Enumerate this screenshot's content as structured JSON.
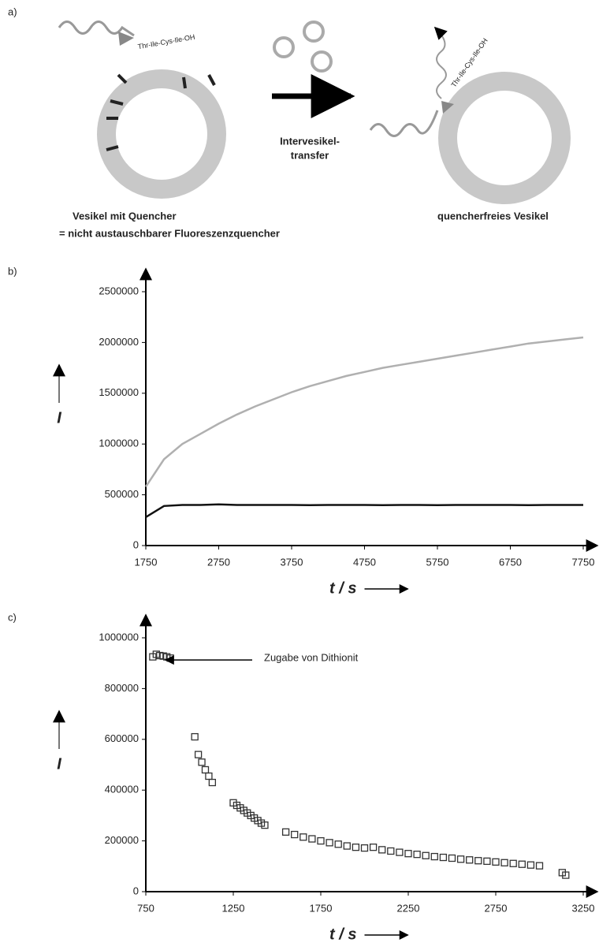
{
  "diagram": {
    "panel": "a)",
    "peptide_left": "Thr-Ile-Cys-Ile-OH",
    "peptide_right": "Thr-Ile-Cys-Ile-OH",
    "transfer_line1": "Intervesikel-",
    "transfer_line2": "transfer",
    "left_caption": "Vesikel mit Quencher",
    "legend": "= nicht austauschbarer Fluoreszenzquencher",
    "right_caption": "quencherfreies Vesikel"
  },
  "chart_data": [
    {
      "type": "line",
      "panel": "b)",
      "y_label": "I",
      "x_label": "t / s",
      "x": [
        1750,
        2000,
        2250,
        2500,
        2750,
        3000,
        3250,
        3500,
        3750,
        4000,
        4250,
        4500,
        4750,
        5000,
        5250,
        5500,
        5750,
        6000,
        6250,
        6500,
        6750,
        7000,
        7250,
        7500,
        7750
      ],
      "series": [
        {
          "color": "#b0b0b0",
          "values": [
            580000,
            850000,
            1000000,
            1100000,
            1200000,
            1290000,
            1370000,
            1440000,
            1510000,
            1570000,
            1620000,
            1670000,
            1710000,
            1750000,
            1780000,
            1810000,
            1840000,
            1870000,
            1900000,
            1930000,
            1960000,
            1990000,
            2010000,
            2030000,
            2050000
          ]
        },
        {
          "color": "#111111",
          "values": [
            280000,
            390000,
            400000,
            400000,
            405000,
            400000,
            400000,
            400000,
            400000,
            398000,
            400000,
            400000,
            400000,
            398000,
            400000,
            400000,
            398000,
            400000,
            400000,
            400000,
            400000,
            398000,
            400000,
            400000,
            400000
          ]
        }
      ],
      "xlim": [
        1750,
        7750
      ],
      "xticks": [
        1750,
        2750,
        3750,
        4750,
        5750,
        6750,
        7750
      ],
      "ylim": [
        0,
        2500000
      ],
      "yticks": [
        0,
        500000,
        1000000,
        1500000,
        2000000,
        2500000
      ]
    },
    {
      "type": "scatter",
      "panel": "c)",
      "y_label": "I",
      "x_label": "t / s",
      "annotation": "Zugabe von Dithionit",
      "color": "#333333",
      "x": [
        790,
        810,
        830,
        850,
        870,
        890,
        1030,
        1050,
        1070,
        1090,
        1110,
        1130,
        1250,
        1270,
        1290,
        1310,
        1330,
        1350,
        1370,
        1390,
        1410,
        1430,
        1550,
        1600,
        1650,
        1700,
        1750,
        1800,
        1850,
        1900,
        1950,
        2000,
        2050,
        2100,
        2150,
        2200,
        2250,
        2300,
        2350,
        2400,
        2450,
        2500,
        2550,
        2600,
        2650,
        2700,
        2750,
        2800,
        2850,
        2900,
        2950,
        3000,
        3130,
        3150
      ],
      "values": [
        925000,
        935000,
        930000,
        928000,
        925000,
        920000,
        610000,
        540000,
        510000,
        480000,
        455000,
        430000,
        350000,
        340000,
        330000,
        320000,
        310000,
        300000,
        290000,
        280000,
        270000,
        262000,
        235000,
        225000,
        215000,
        208000,
        200000,
        193000,
        187000,
        180000,
        175000,
        172000,
        175000,
        165000,
        160000,
        155000,
        150000,
        147000,
        142000,
        138000,
        135000,
        132000,
        128000,
        125000,
        122000,
        120000,
        117000,
        114000,
        111000,
        108000,
        105000,
        102000,
        75000,
        65000
      ],
      "xlim": [
        750,
        3250
      ],
      "xticks": [
        750,
        1250,
        1750,
        2250,
        2750,
        3250
      ],
      "ylim": [
        0,
        1000000
      ],
      "yticks": [
        0,
        200000,
        400000,
        600000,
        800000,
        1000000
      ]
    }
  ]
}
